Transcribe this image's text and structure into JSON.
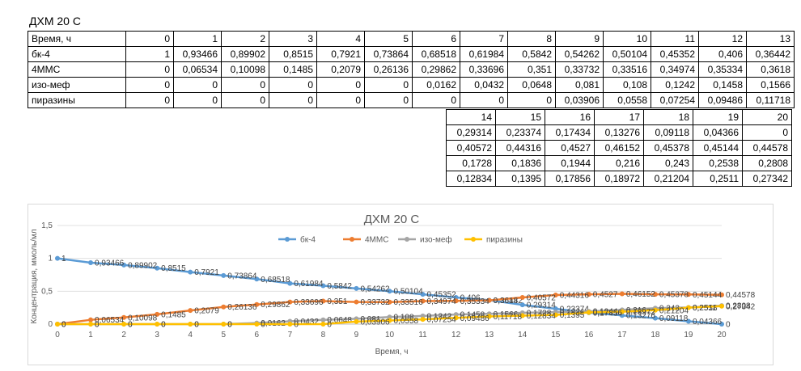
{
  "sheet_title": "ДХМ 20 С",
  "table": {
    "time_label": "Время, ч",
    "rows": [
      {
        "label": "бк-4",
        "values": [
          "1",
          "0,93466",
          "0,89902",
          "0,8515",
          "0,7921",
          "0,73864",
          "0,68518",
          "0,61984",
          "0,5842",
          "0,54262",
          "0,50104",
          "0,45352",
          "0,406",
          "0,36442",
          "0,29314",
          "0,23374",
          "0,17434",
          "0,13276",
          "0,09118",
          "0,04366",
          "0"
        ]
      },
      {
        "label": "4ММС",
        "values": [
          "0",
          "0,06534",
          "0,10098",
          "0,1485",
          "0,2079",
          "0,26136",
          "0,29862",
          "0,33696",
          "0,351",
          "0,33732",
          "0,33516",
          "0,34974",
          "0,35334",
          "0,3618",
          "0,40572",
          "0,44316",
          "0,4527",
          "0,46152",
          "0,45378",
          "0,45144",
          "0,44578"
        ]
      },
      {
        "label": "изо-меф",
        "values": [
          "0",
          "0",
          "0",
          "0",
          "0",
          "0",
          "0,0162",
          "0,0432",
          "0,0648",
          "0,081",
          "0,108",
          "0,1242",
          "0,1458",
          "0,1566",
          "0,1728",
          "0,1836",
          "0,1944",
          "0,216",
          "0,243",
          "0,2538",
          "0,2808"
        ]
      },
      {
        "label": "пиразины",
        "values": [
          "0",
          "0",
          "0",
          "0",
          "0",
          "0",
          "0",
          "0",
          "0",
          "0,03906",
          "0,0558",
          "0,07254",
          "0,09486",
          "0,11718",
          "0,12834",
          "0,1395",
          "0,17856",
          "0,18972",
          "0,21204",
          "0,2511",
          "0,27342"
        ]
      }
    ]
  },
  "chart_data": {
    "type": "line",
    "title": "ДХМ 20 С",
    "xlabel": "Время, ч",
    "ylabel": "Концентрация, ммоль/мл",
    "x": [
      0,
      1,
      2,
      3,
      4,
      5,
      6,
      7,
      8,
      9,
      10,
      11,
      12,
      13,
      14,
      15,
      16,
      17,
      18,
      19,
      20
    ],
    "ylim": [
      0,
      1.5
    ],
    "yticks": [
      "0",
      "0,5",
      "1",
      "1,5"
    ],
    "grid": true,
    "legend": "top",
    "series": [
      {
        "name": "бк-4",
        "color": "#5B9BD5",
        "values": [
          1,
          0.93466,
          0.89902,
          0.8515,
          0.7921,
          0.73864,
          0.68518,
          0.61984,
          0.5842,
          0.54262,
          0.50104,
          0.45352,
          0.406,
          0.36442,
          0.29314,
          0.23374,
          0.17434,
          0.13276,
          0.09118,
          0.04366,
          0
        ],
        "labels": [
          "1",
          "0,93466",
          "0,89902",
          "0,8515",
          "0,7921",
          "0,73864",
          "0,68518",
          "0,61984",
          "0,5842",
          "0,54262",
          "0,50104",
          "0,45352",
          "0,406",
          "0,36442",
          "0,29314",
          "0,23374",
          "0,17434",
          "0,13276",
          "0,09118",
          "0,04366",
          "0"
        ]
      },
      {
        "name": "4ММС",
        "color": "#ED7D31",
        "values": [
          0,
          0.06534,
          0.10098,
          0.1485,
          0.2079,
          0.26136,
          0.29862,
          0.33696,
          0.351,
          0.33732,
          0.33516,
          0.34974,
          0.35334,
          0.3618,
          0.40572,
          0.44316,
          0.4527,
          0.46152,
          0.45378,
          0.45144,
          0.44578
        ],
        "labels": [
          "0",
          "0,06534",
          "0,10098",
          "0,1485",
          "0,2079",
          "0,26136",
          "0,29862",
          "0,33696",
          "0,351",
          "0,33732",
          "0,33516",
          "0,34974",
          "0,35334",
          "0,3618",
          "0,40572",
          "0,44316",
          "0,4527",
          "0,46152",
          "0,45378",
          "0,45144",
          "0,44578"
        ]
      },
      {
        "name": "изо-меф",
        "color": "#A5A5A5",
        "values": [
          0,
          0,
          0,
          0,
          0,
          0,
          0.0162,
          0.0432,
          0.0648,
          0.081,
          0.108,
          0.1242,
          0.1458,
          0.1566,
          0.1728,
          0.1836,
          0.1944,
          0.216,
          0.243,
          0.2538,
          0.2808
        ],
        "labels": [
          "0",
          "0",
          "0",
          "0",
          "0",
          "0",
          "0,0162",
          "0,0432",
          "0,0648",
          "0,081",
          "0,108",
          "0,1242",
          "0,1458",
          "0,1566",
          "0,1728",
          "0,1836",
          "0,1944",
          "0,216",
          "0,243",
          "0,2538",
          "0,2808"
        ]
      },
      {
        "name": "пиразины",
        "color": "#FFC000",
        "values": [
          0,
          0,
          0,
          0,
          0,
          0,
          0,
          0,
          0,
          0.03906,
          0.0558,
          0.07254,
          0.09486,
          0.11718,
          0.12834,
          0.1395,
          0.17856,
          0.18972,
          0.21204,
          0.2511,
          0.27342
        ],
        "labels": [
          "0",
          "0",
          "0",
          "0",
          "0",
          "0",
          "0",
          "0",
          "0",
          "0,03906",
          "0,0558",
          "0,07254",
          "0,09486",
          "0,11718",
          "0,12834",
          "0,1395",
          "0,17856",
          "0,18972",
          "0,21204",
          "0,2511",
          "0,27342"
        ]
      }
    ]
  }
}
